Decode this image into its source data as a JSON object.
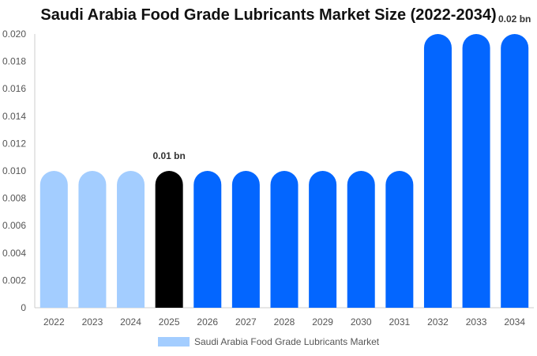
{
  "chart_data": {
    "type": "bar",
    "title": "Saudi Arabia Food Grade Lubricants Market Size (2022-2034)",
    "categories": [
      "2022",
      "2023",
      "2024",
      "2025",
      "2026",
      "2027",
      "2028",
      "2029",
      "2030",
      "2031",
      "2032",
      "2033",
      "2034"
    ],
    "series": [
      {
        "name": "Saudi Arabia Food Grade Lubricants Market",
        "values": [
          0.01,
          0.01,
          0.01,
          0.01,
          0.01,
          0.01,
          0.01,
          0.01,
          0.01,
          0.01,
          0.02,
          0.02,
          0.02
        ]
      }
    ],
    "ylim": [
      0,
      0.02
    ],
    "yticks": [
      "0",
      "0.002",
      "0.004",
      "0.006",
      "0.008",
      "0.010",
      "0.012",
      "0.014",
      "0.016",
      "0.018",
      "0.020"
    ],
    "data_labels": [
      {
        "category": "2025",
        "text": "0.01 bn"
      },
      {
        "category": "2034",
        "text": "0.02 bn"
      }
    ],
    "bar_colors": [
      "#a3cdff",
      "#a3cdff",
      "#a3cdff",
      "#000000",
      "#0366ff",
      "#0366ff",
      "#0366ff",
      "#0366ff",
      "#0366ff",
      "#0366ff",
      "#0366ff",
      "#0366ff",
      "#0366ff"
    ],
    "legend": {
      "position": "bottom",
      "color": "#a3cdff"
    },
    "grid": false
  }
}
